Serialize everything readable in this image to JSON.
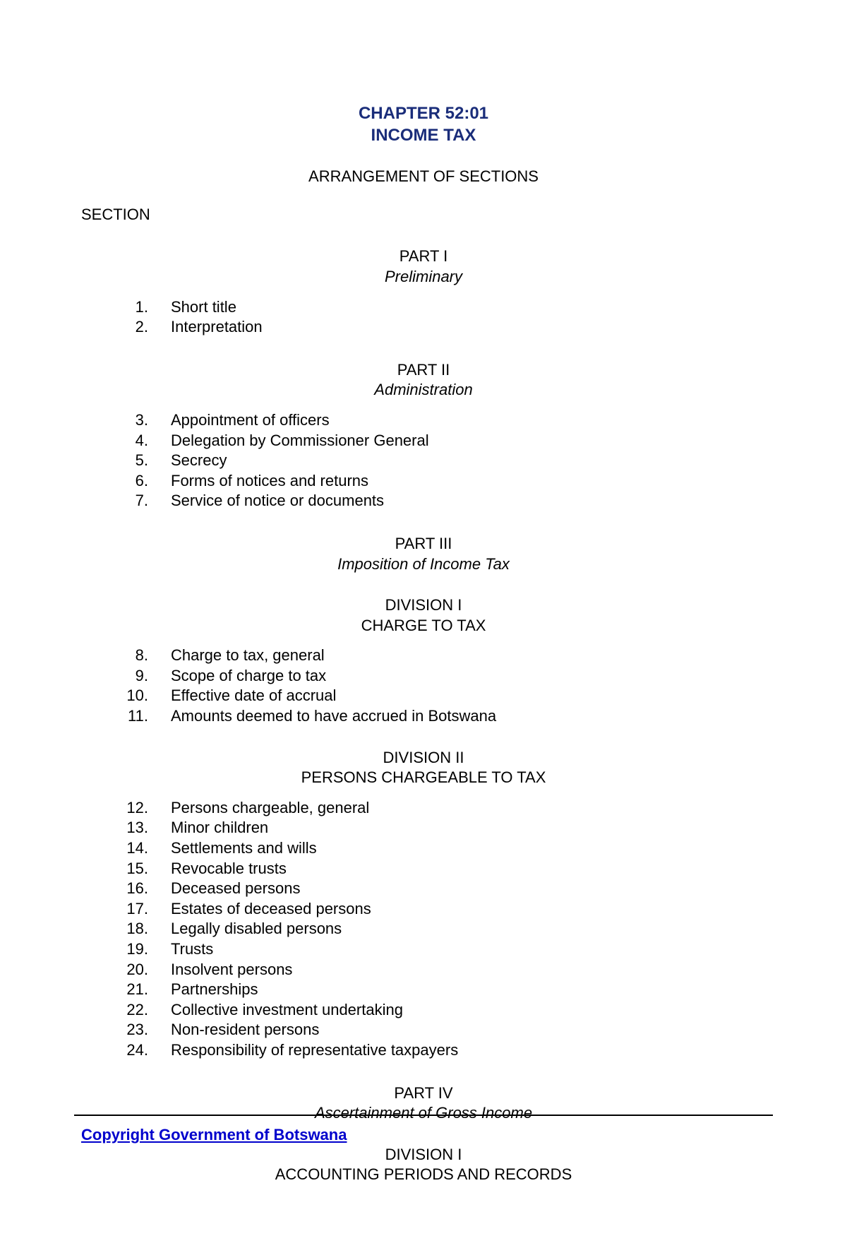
{
  "header": {
    "chapter_line1": "CHAPTER 52:01",
    "chapter_line2": "INCOME TAX",
    "arrangement": "ARRANGEMENT OF SECTIONS",
    "section_label": "SECTION"
  },
  "parts": [
    {
      "part_number": "PART I",
      "part_title": "Preliminary",
      "divisions": [
        {
          "items": [
            {
              "num": "1.",
              "text": "Short title"
            },
            {
              "num": "2.",
              "text": "Interpretation"
            }
          ]
        }
      ]
    },
    {
      "part_number": "PART II",
      "part_title": "Administration",
      "divisions": [
        {
          "items": [
            {
              "num": "3.",
              "text": "Appointment of officers"
            },
            {
              "num": "4.",
              "text": "Delegation by Commissioner General"
            },
            {
              "num": "5.",
              "text": "Secrecy"
            },
            {
              "num": "6.",
              "text": "Forms of notices and returns"
            },
            {
              "num": "7.",
              "text": "Service of notice or documents"
            }
          ]
        }
      ]
    },
    {
      "part_number": "PART III",
      "part_title": "Imposition of Income Tax",
      "divisions": [
        {
          "division_number": "DIVISION I",
          "division_title": "CHARGE TO TAX",
          "items": [
            {
              "num": "8.",
              "text": "Charge to tax, general"
            },
            {
              "num": "9.",
              "text": "Scope of charge to tax"
            },
            {
              "num": "10.",
              "text": "Effective date of accrual"
            },
            {
              "num": "11.",
              "text": "Amounts deemed to have accrued in Botswana"
            }
          ]
        },
        {
          "division_number": "DIVISION II",
          "division_title": "PERSONS CHARGEABLE TO TAX",
          "items": [
            {
              "num": "12.",
              "text": "Persons chargeable, general"
            },
            {
              "num": "13.",
              "text": "Minor children"
            },
            {
              "num": "14.",
              "text": "Settlements and wills"
            },
            {
              "num": "15.",
              "text": "Revocable trusts"
            },
            {
              "num": "16.",
              "text": "Deceased persons"
            },
            {
              "num": "17.",
              "text": "Estates of deceased persons"
            },
            {
              "num": "18.",
              "text": "Legally disabled persons"
            },
            {
              "num": "19.",
              "text": "Trusts"
            },
            {
              "num": "20.",
              "text": "Insolvent persons"
            },
            {
              "num": "21.",
              "text": "Partnerships"
            },
            {
              "num": "22.",
              "text": "Collective investment undertaking"
            },
            {
              "num": "23.",
              "text": "Non-resident persons"
            },
            {
              "num": "24.",
              "text": "Responsibility of representative taxpayers"
            }
          ]
        }
      ]
    },
    {
      "part_number": "PART IV",
      "part_title": "Ascertainment of Gross Income",
      "divisions": [
        {
          "division_number": "DIVISION I",
          "division_title": "ACCOUNTING PERIODS AND RECORDS",
          "items": []
        }
      ]
    }
  ],
  "footer": {
    "copyright": "Copyright Government of Botswana"
  },
  "style": {
    "heading_color": "#1a2d7a",
    "copyright_color": "#0000cc",
    "background_color": "#ffffff",
    "text_color": "#000000",
    "base_fontsize": 22,
    "heading_fontsize": 24
  }
}
